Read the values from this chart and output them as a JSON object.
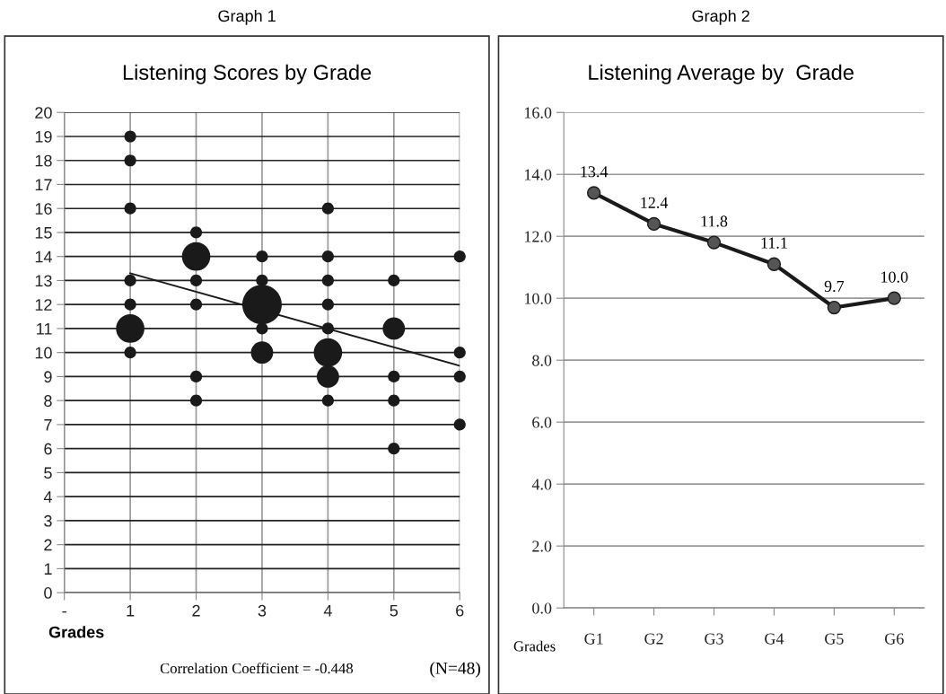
{
  "chart_data": [
    {
      "type": "bubble",
      "title": "Graph 1",
      "subtitle": "Listening Scores by Grade",
      "xlabel": "Grades",
      "xlim": [
        0,
        6
      ],
      "xticks": [
        {
          "value": 0,
          "label": "-"
        },
        1,
        2,
        3,
        4,
        5,
        6
      ],
      "ylim": [
        0,
        20
      ],
      "yticks": [
        0,
        1,
        2,
        3,
        4,
        5,
        6,
        7,
        8,
        9,
        10,
        11,
        12,
        13,
        14,
        15,
        16,
        17,
        18,
        19,
        20
      ],
      "grid": true,
      "annotations": [
        "Correlation Coefficient = -0.448",
        "(N=48)"
      ],
      "series": [
        {
          "type": "bubble",
          "color": "#1a1a1a",
          "x": [
            1,
            1,
            1,
            1,
            1,
            1,
            1,
            2,
            2,
            2,
            2,
            2,
            2,
            3,
            3,
            3,
            3,
            3,
            4,
            4,
            4,
            4,
            4,
            4,
            4,
            4,
            5,
            5,
            5,
            5,
            5,
            6,
            6,
            6,
            6
          ],
          "values": [
            19,
            18,
            16,
            13,
            12,
            10,
            11,
            15,
            13,
            12,
            9,
            8,
            14,
            14,
            13,
            11,
            12,
            10,
            16,
            14,
            13,
            12,
            11,
            8,
            10,
            9,
            13,
            9,
            8,
            6,
            11,
            14,
            10,
            9,
            7
          ],
          "sizes": [
            0.09,
            0.09,
            0.09,
            0.09,
            0.09,
            0.09,
            0.52,
            0.09,
            0.09,
            0.09,
            0.09,
            0.09,
            0.52,
            0.09,
            0.09,
            0.09,
            1,
            0.32,
            0.09,
            0.09,
            0.09,
            0.09,
            0.09,
            0.09,
            0.52,
            0.32,
            0.09,
            0.09,
            0.09,
            0.09,
            0.32,
            0.09,
            0.09,
            0.09,
            0.09
          ]
        },
        {
          "type": "line",
          "color": "#1a1a1a",
          "x": [
            1,
            6
          ],
          "values": [
            13.3,
            9.45
          ]
        }
      ]
    },
    {
      "type": "line",
      "title": "Graph 2",
      "subtitle": "Listening Average by  Grade",
      "xlabel": "Grades",
      "categories": [
        "G1",
        "G2",
        "G3",
        "G4",
        "G5",
        "G6"
      ],
      "ylim": [
        0,
        16
      ],
      "yticks": [
        {
          "value": 0,
          "label": "0.0"
        },
        {
          "value": 2,
          "label": "2.0"
        },
        {
          "value": 4,
          "label": "4.0"
        },
        {
          "value": 6,
          "label": "6.0"
        },
        {
          "value": 8,
          "label": "8.0"
        },
        {
          "value": 10,
          "label": "10.0"
        },
        {
          "value": 12,
          "label": "12.0"
        },
        {
          "value": 14,
          "label": "14.0"
        },
        {
          "value": 16,
          "label": "16.0"
        }
      ],
      "grid": "y",
      "marker": "circle",
      "series": [
        {
          "color": "#1a1a1a",
          "values": [
            13.4,
            12.4,
            11.8,
            11.1,
            9.7,
            10.0
          ],
          "value_labels": [
            "13.4",
            "12.4",
            "11.8",
            "11.1",
            "9.7",
            "10.0"
          ]
        }
      ]
    }
  ]
}
